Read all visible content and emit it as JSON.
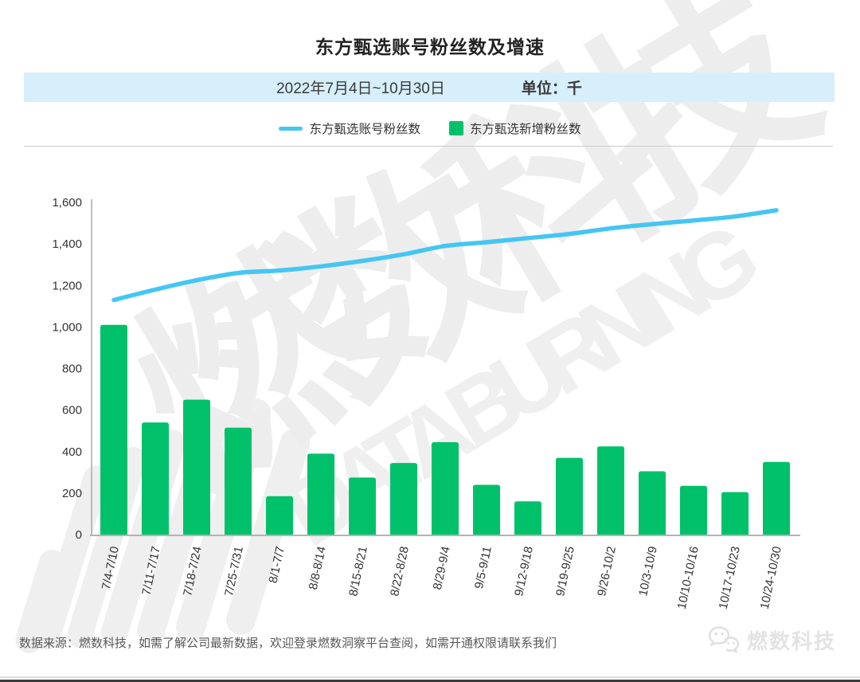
{
  "header": {
    "title": "东方甄选账号粉丝数及增速"
  },
  "subtitle": {
    "date_range": "2022年7月4日~10月30日",
    "unit_label": "单位：千"
  },
  "legend": {
    "line_label": "东方甄选账号粉丝数",
    "bar_label": "东方甄选新增粉丝数"
  },
  "chart_data": {
    "type": "combo",
    "categories": [
      "7/4-7/10",
      "7/11-7/17",
      "7/18-7/24",
      "7/25-7/31",
      "8/1-7/7",
      "8/8-8/14",
      "8/15-8/21",
      "8/22-8/28",
      "8/29-9/4",
      "9/5-9/11",
      "9/12-9/18",
      "9/19-9/25",
      "9/26-10/2",
      "10/3-10/9",
      "10/10-10/16",
      "10/17-10/23",
      "10/24-10/30"
    ],
    "series": [
      {
        "name": "东方甄选账号粉丝数",
        "type": "line",
        "values": [
          1130,
          1180,
          1225,
          1260,
          1272,
          1292,
          1318,
          1350,
          1390,
          1408,
          1428,
          1448,
          1475,
          1495,
          1513,
          1532,
          1562
        ]
      },
      {
        "name": "东方甄选新增粉丝数",
        "type": "bar",
        "values": [
          1010,
          540,
          650,
          515,
          185,
          390,
          275,
          345,
          445,
          240,
          160,
          370,
          425,
          305,
          235,
          205,
          350
        ]
      }
    ],
    "title": "东方甄选账号粉丝数及增速",
    "xlabel": "",
    "ylabel": "",
    "ylim": [
      0,
      1600
    ],
    "ytick_labels": [
      "0",
      "200",
      "400",
      "600",
      "800",
      "1,000",
      "1,200",
      "1,400",
      "1,600"
    ],
    "grid": false,
    "legend_position": "top"
  },
  "watermark": {
    "text_cn": "燃数科技",
    "text_en": "DATA BURNING"
  },
  "footer": {
    "source_text": "数据来源：燃数科技，如需了解公司最新数据，欢迎登录燃数洞察平台查阅，如需开通权限请联系我们",
    "brand_name": "燃数科技"
  },
  "colors": {
    "bar": "#00c16a",
    "line": "#45c6f2",
    "band_bg": "#d6effa",
    "axis": "#aaaaaa"
  }
}
